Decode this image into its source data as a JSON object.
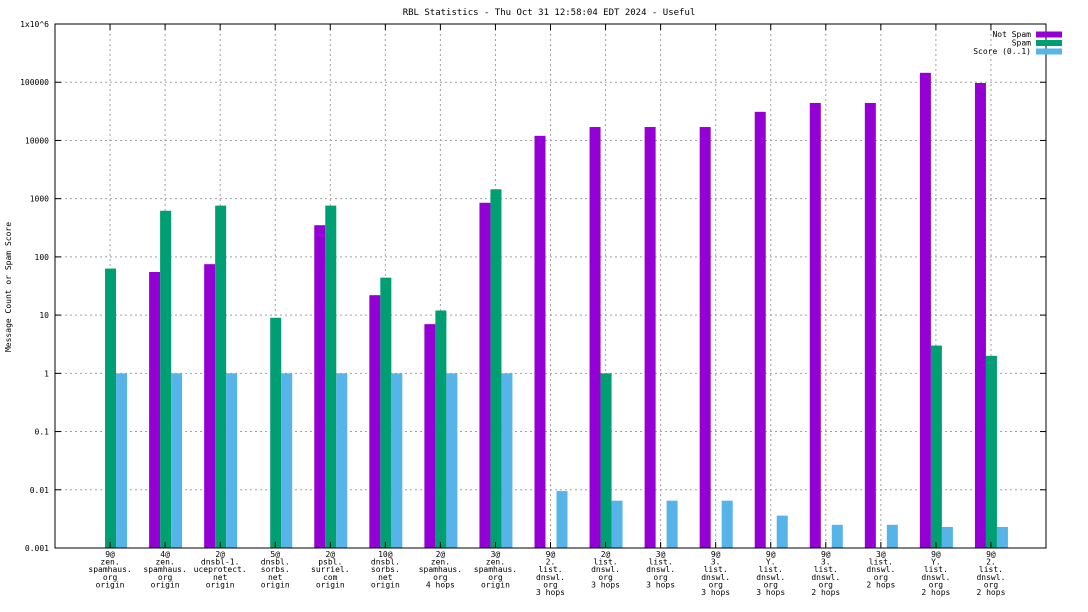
{
  "chart_data": {
    "type": "bar",
    "title": "RBL Statistics - Thu Oct 31 12:58:04 EDT 2024 - Useful",
    "ylabel": "Message Count or Spam Score",
    "yscale": "log",
    "ylim": [
      0.001,
      1000000
    ],
    "grid": true,
    "legend_position": "top-right",
    "ytick_labels": [
      "0.001",
      "0.01",
      "0.1",
      "1",
      "10",
      "100",
      "1000",
      "10000",
      "100000",
      "1x10^6"
    ],
    "ytick_values": [
      0.001,
      0.01,
      0.1,
      1,
      10,
      100,
      1000,
      10000,
      100000,
      1000000
    ],
    "categories": [
      [
        "9@",
        "zen.",
        "spamhaus.",
        "org",
        "origin"
      ],
      [
        "4@",
        "zen.",
        "spamhaus.",
        "org",
        "origin"
      ],
      [
        "2@",
        "dnsbl-1.",
        "uceprotect.",
        "net",
        "origin"
      ],
      [
        "5@",
        "dnsbl.",
        "sorbs.",
        "net",
        "origin"
      ],
      [
        "2@",
        "psbl.",
        "surriel.",
        "com",
        "origin"
      ],
      [
        "10@",
        "dnsbl.",
        "sorbs.",
        "net",
        "origin"
      ],
      [
        "2@",
        "zen.",
        "spamhaus.",
        "org",
        "4 hops"
      ],
      [
        "3@",
        "zen.",
        "spamhaus.",
        "org",
        "origin"
      ],
      [
        "9@",
        "2.",
        "list.",
        "dnswl.",
        "org",
        "3 hops"
      ],
      [
        "2@",
        "list.",
        "dnswl.",
        "org",
        "3 hops"
      ],
      [
        "3@",
        "list.",
        "dnswl.",
        "org",
        "3 hops"
      ],
      [
        "9@",
        "3.",
        "list.",
        "dnswl.",
        "org",
        "3 hops"
      ],
      [
        "9@",
        "Y.",
        "list.",
        "dnswl.",
        "org",
        "3 hops"
      ],
      [
        "9@",
        "3.",
        "list.",
        "dnswl.",
        "org",
        "2 hops"
      ],
      [
        "3@",
        "list.",
        "dnswl.",
        "org",
        "2 hops"
      ],
      [
        "9@",
        "Y.",
        "list.",
        "dnswl.",
        "org",
        "2 hops"
      ],
      [
        "9@",
        "2.",
        "list.",
        "dnswl.",
        "org",
        "2 hops"
      ]
    ],
    "series": [
      {
        "name": "Not Spam",
        "color": "#9400d3",
        "values": [
          null,
          55,
          75,
          null,
          350,
          22,
          7,
          850,
          12000,
          17000,
          17000,
          17000,
          31000,
          44000,
          44000,
          145000,
          97000
        ]
      },
      {
        "name": "Spam",
        "color": "#009e73",
        "values": [
          63,
          620,
          760,
          9,
          760,
          44,
          12,
          1450,
          null,
          1,
          null,
          null,
          null,
          null,
          null,
          3,
          2
        ]
      },
      {
        "name": "Score (0..1)",
        "color": "#56b4e9",
        "values": [
          1,
          1,
          1,
          1,
          1,
          1,
          1,
          1,
          0.0095,
          0.0065,
          0.0065,
          0.0065,
          0.0036,
          0.0025,
          0.0025,
          0.0023,
          0.0023
        ]
      }
    ]
  }
}
